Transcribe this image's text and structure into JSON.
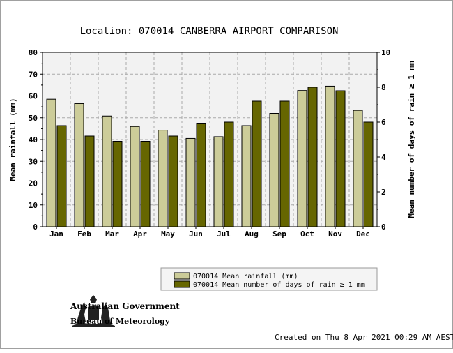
{
  "chart_data": {
    "type": "bar",
    "title": "Location: 070014 CANBERRA AIRPORT COMPARISON",
    "categories": [
      "Jan",
      "Feb",
      "Mar",
      "Apr",
      "May",
      "Jun",
      "Jul",
      "Aug",
      "Sep",
      "Oct",
      "Nov",
      "Dec"
    ],
    "ylabel": "Mean rainfall (mm)",
    "y2label": "Mean number of days of rain ≥ 1 mm",
    "ylim": [
      0,
      80
    ],
    "y2lim": [
      0,
      10
    ],
    "yticks": [
      0,
      10,
      20,
      30,
      40,
      50,
      60,
      70,
      80
    ],
    "y2ticks": [
      0,
      2,
      4,
      6,
      8,
      10
    ],
    "grid": true,
    "legend_position": "bottom",
    "series": [
      {
        "name": "070014 Mean rainfall (mm)",
        "axis": "left",
        "color": "#cccc99",
        "values": [
          58.5,
          56.5,
          50.8,
          46.0,
          44.3,
          40.5,
          41.3,
          46.4,
          52.0,
          62.5,
          64.5,
          53.4
        ]
      },
      {
        "name": "070014 Mean number of days of rain ≥ 1 mm",
        "axis": "right",
        "color": "#666600",
        "values": [
          5.8,
          5.2,
          4.9,
          4.9,
          5.2,
          5.9,
          6.0,
          7.2,
          7.2,
          8.0,
          7.8,
          6.0
        ]
      }
    ]
  },
  "branding": {
    "line1": "Australian Government",
    "line2": "Bureau of Meteorology"
  },
  "footer": {
    "created": "Created on Thu  8 Apr 2021 00:29 AM AEST"
  }
}
